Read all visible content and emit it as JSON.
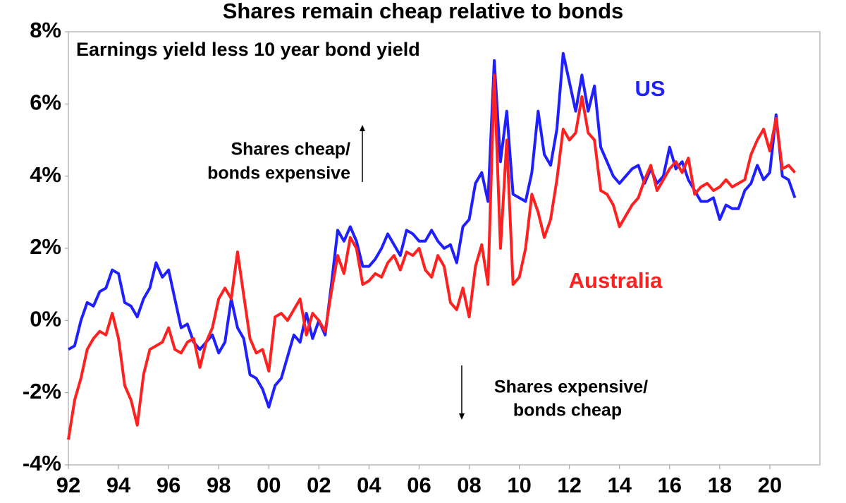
{
  "chart_data": {
    "type": "line",
    "title": "Shares remain cheap relative to bonds",
    "subtitle": "Earnings yield less 10 year bond yield",
    "annotations": [
      "Shares cheap/",
      "bonds expensive",
      "Shares expensive/",
      "bonds cheap"
    ],
    "x": [
      1992,
      1992.25,
      1992.5,
      1992.75,
      1993,
      1993.25,
      1993.5,
      1993.75,
      1994,
      1994.25,
      1994.5,
      1994.75,
      1995,
      1995.25,
      1995.5,
      1995.75,
      1996,
      1996.25,
      1996.5,
      1996.75,
      1997,
      1997.25,
      1997.5,
      1997.75,
      1998,
      1998.25,
      1998.5,
      1998.75,
      1999,
      1999.25,
      1999.5,
      1999.75,
      2000,
      2000.25,
      2000.5,
      2000.75,
      2001,
      2001.25,
      2001.5,
      2001.75,
      2002,
      2002.25,
      2002.5,
      2002.75,
      2003,
      2003.25,
      2003.5,
      2003.75,
      2004,
      2004.25,
      2004.5,
      2004.75,
      2005,
      2005.25,
      2005.5,
      2005.75,
      2006,
      2006.25,
      2006.5,
      2006.75,
      2007,
      2007.25,
      2007.5,
      2007.75,
      2008,
      2008.25,
      2008.5,
      2008.75,
      2009,
      2009.25,
      2009.5,
      2009.75,
      2010,
      2010.25,
      2010.5,
      2010.75,
      2011,
      2011.25,
      2011.5,
      2011.75,
      2012,
      2012.25,
      2012.5,
      2012.75,
      2013,
      2013.25,
      2013.5,
      2013.75,
      2014,
      2014.25,
      2014.5,
      2014.75,
      2015,
      2015.25,
      2015.5,
      2015.75,
      2016,
      2016.25,
      2016.5,
      2016.75,
      2017,
      2017.25,
      2017.5,
      2017.75,
      2018,
      2018.25,
      2018.5,
      2018.75,
      2019,
      2019.25,
      2019.5,
      2019.75,
      2020,
      2020.25,
      2020.5,
      2020.75,
      2021
    ],
    "series": [
      {
        "name": "US",
        "color": "#1f1fff",
        "values": [
          -0.8,
          -0.7,
          0.0,
          0.5,
          0.4,
          0.8,
          0.9,
          1.4,
          1.3,
          0.5,
          0.4,
          0.1,
          0.6,
          0.9,
          1.6,
          1.2,
          1.4,
          0.6,
          -0.2,
          -0.1,
          -0.6,
          -0.8,
          -0.6,
          -0.4,
          -0.9,
          -0.6,
          0.6,
          -0.2,
          -0.5,
          -1.5,
          -1.6,
          -1.9,
          -2.4,
          -1.8,
          -1.6,
          -1.0,
          -0.4,
          -0.6,
          0.2,
          -0.5,
          0.0,
          -0.4,
          1.0,
          2.5,
          2.2,
          2.6,
          2.2,
          1.5,
          1.5,
          1.7,
          2.0,
          2.4,
          2.1,
          1.8,
          2.5,
          2.4,
          2.2,
          2.2,
          2.5,
          2.2,
          2.0,
          2.1,
          1.6,
          2.6,
          2.8,
          3.8,
          4.1,
          3.3,
          7.2,
          4.4,
          5.8,
          3.5,
          3.4,
          3.3,
          4.1,
          5.8,
          4.6,
          4.3,
          5.3,
          7.4,
          6.6,
          5.8,
          6.8,
          5.8,
          6.5,
          4.8,
          4.4,
          4.0,
          3.8,
          4.0,
          4.2,
          4.3,
          3.8,
          4.2,
          3.8,
          4.0,
          4.8,
          4.2,
          4.4,
          3.9,
          3.6,
          3.3,
          3.3,
          3.4,
          2.8,
          3.2,
          3.1,
          3.1,
          3.6,
          3.8,
          4.3,
          3.9,
          4.1,
          5.7,
          4.0,
          3.9,
          3.4
        ]
      },
      {
        "name": "Australia",
        "color": "#ff2020",
        "values": [
          -3.3,
          -2.2,
          -1.6,
          -0.8,
          -0.5,
          -0.3,
          -0.4,
          0.2,
          -0.5,
          -1.8,
          -2.2,
          -2.9,
          -1.5,
          -0.8,
          -0.7,
          -0.6,
          -0.2,
          -0.8,
          -0.9,
          -0.6,
          -0.5,
          -1.3,
          -0.6,
          -0.2,
          0.6,
          0.9,
          0.6,
          1.9,
          0.7,
          -0.5,
          -0.9,
          -0.8,
          -1.4,
          0.1,
          0.2,
          0.0,
          0.3,
          0.6,
          -0.4,
          0.2,
          0.0,
          -0.3,
          0.8,
          1.8,
          1.3,
          2.3,
          2.0,
          1.0,
          1.1,
          1.3,
          1.2,
          1.6,
          1.8,
          1.4,
          1.9,
          1.8,
          2.0,
          1.4,
          1.2,
          1.8,
          1.5,
          0.5,
          0.3,
          0.9,
          0.1,
          1.5,
          2.1,
          1.0,
          6.8,
          2.0,
          5.0,
          1.0,
          1.2,
          2.0,
          3.5,
          3.0,
          2.3,
          2.8,
          3.9,
          5.3,
          5.0,
          5.2,
          6.2,
          5.2,
          5.0,
          3.6,
          3.5,
          3.2,
          2.6,
          2.9,
          3.2,
          3.4,
          3.9,
          4.3,
          3.6,
          3.9,
          4.2,
          4.4,
          4.1,
          4.5,
          3.5,
          3.7,
          3.8,
          3.6,
          3.7,
          3.9,
          3.7,
          3.8,
          3.9,
          4.6,
          5.0,
          5.3,
          4.7,
          5.6,
          4.2,
          4.3,
          4.1
        ]
      }
    ],
    "xlim": [
      1992,
      2022
    ],
    "xticks": [
      {
        "value": 1992,
        "label": "92"
      },
      {
        "value": 1994,
        "label": "94"
      },
      {
        "value": 1996,
        "label": "96"
      },
      {
        "value": 1998,
        "label": "98"
      },
      {
        "value": 2000,
        "label": "00"
      },
      {
        "value": 2002,
        "label": "02"
      },
      {
        "value": 2004,
        "label": "04"
      },
      {
        "value": 2006,
        "label": "06"
      },
      {
        "value": 2008,
        "label": "08"
      },
      {
        "value": 2010,
        "label": "10"
      },
      {
        "value": 2012,
        "label": "12"
      },
      {
        "value": 2014,
        "label": "14"
      },
      {
        "value": 2016,
        "label": "16"
      },
      {
        "value": 2018,
        "label": "18"
      },
      {
        "value": 2020,
        "label": "20"
      }
    ],
    "ylim": [
      -4,
      8
    ],
    "yticks": [
      {
        "value": -4,
        "label": "-4%"
      },
      {
        "value": -2,
        "label": "-2%"
      },
      {
        "value": 0,
        "label": "0%"
      },
      {
        "value": 2,
        "label": "2%"
      },
      {
        "value": 4,
        "label": "4%"
      },
      {
        "value": 6,
        "label": "6%"
      },
      {
        "value": 8,
        "label": "8%"
      }
    ],
    "grid": false
  }
}
